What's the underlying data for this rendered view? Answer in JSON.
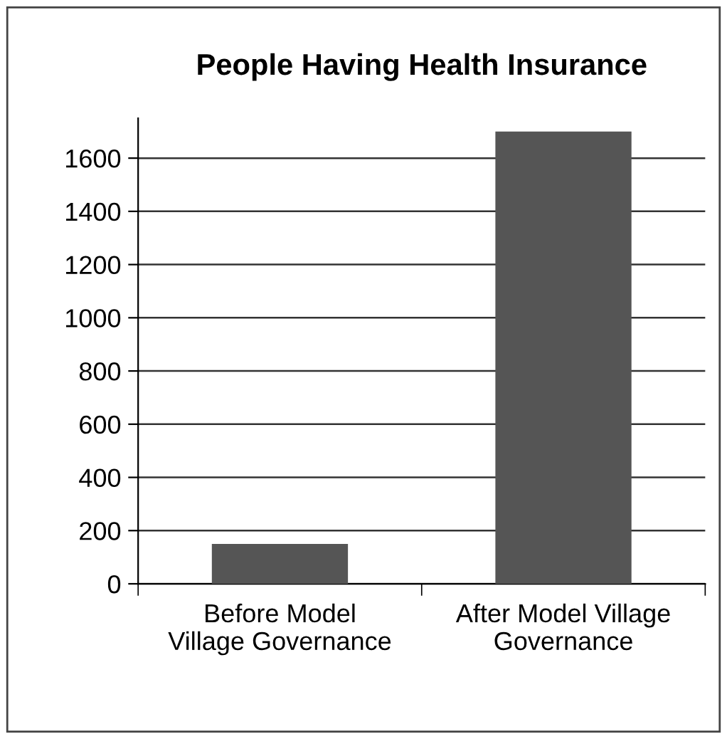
{
  "chart_data": {
    "type": "bar",
    "title": "People Having Health Insurance",
    "categories": [
      "Before Model\nVillage Governance",
      "After Model Village\nGovernance"
    ],
    "values": [
      150,
      1700
    ],
    "color": "#555555",
    "ylim": [
      0,
      1750
    ],
    "yticks": [
      0,
      200,
      400,
      600,
      800,
      1000,
      1200,
      1400,
      1600
    ],
    "grid": "y",
    "legend": false
  }
}
